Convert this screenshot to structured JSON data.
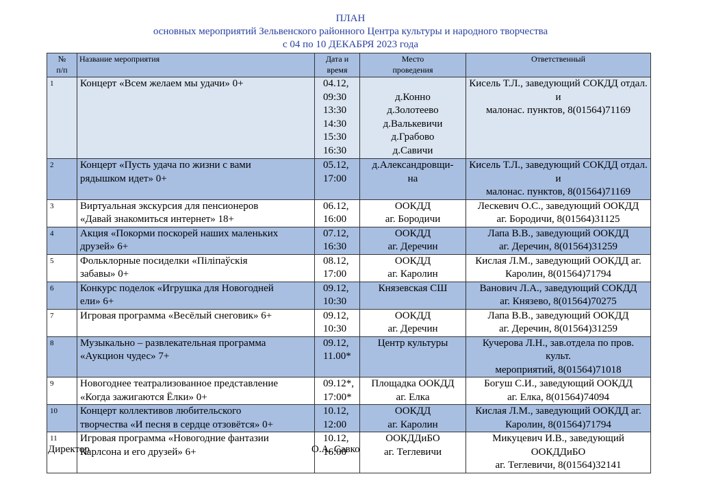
{
  "header": {
    "title": "ПЛАН",
    "subtitle": "основных мероприятий Зельвенского районного Центра культуры и народного творчества",
    "period": "с 04 по 10 ДЕКАБРЯ 2023 года"
  },
  "table": {
    "columns": [
      "№\nп/п",
      "Название мероприятия",
      "Дата и\nвремя",
      "Место\nпроведения",
      "Ответственный"
    ],
    "rows": [
      [
        "1",
        "Концерт «Всем желаем мы удачи» 0+",
        "04.12,\n09:30\n13:30\n14:30\n15:30\n16:30",
        "д.Конно\nд.Золотеево\nд.Валькевичи\nд.Грабово\nд.Савичи",
        "Кисель Т.Л., заведующий СОКДД отдал. и\nмалонас. пунктов, 8(01564)71169"
      ],
      [
        "2",
        "Концерт «Пусть удача по жизни с вами\nрядышком идет» 0+",
        "05.12,\n17:00",
        "д.Александровщи-\nна",
        "Кисель Т.Л., заведующий СОКДД отдал. и\nмалонас. пунктов, 8(01564)71169"
      ],
      [
        "3",
        "Виртуальная экскурсия для пенсионеров\n«Давай знакомиться интернет» 18+",
        "06.12,\n16:00",
        "ООКДД\nаг. Бородичи",
        "Лескевич О.С.,  заведующий ООКДД\nаг. Бородичи, 8(01564)31125"
      ],
      [
        "4",
        "Акция «Покорми поскорей наших маленьких\nдрузей» 6+",
        "07.12,\n16:30",
        "ООКДД\nаг. Деречин",
        "Лапа В.В., заведующий ООКДД\nаг. Деречин, 8(01564)31259"
      ],
      [
        "5",
        "Фольклорные посиделки «Піліпаўскія\nзабавы» 0+",
        "08.12,\n17:00",
        "ООКДД\nаг. Каролин",
        "Кислая Л.М., заведующий ООКДД аг.\nКаролин, 8(01564)71794"
      ],
      [
        "6",
        "Конкурс поделок «Игрушка для Новогодней\nели» 6+",
        "09.12,\n10:30",
        "Князевская СШ",
        "Ванович Л.А., заведующий СОКДД\nаг. Князево,   8(01564)70275"
      ],
      [
        "7",
        "Игровая программа «Весёлый снеговик» 6+",
        "09.12,\n10:30",
        "ООКДД\nаг. Деречин",
        "Лапа В.В., заведующий ООКДД\nаг. Деречин, 8(01564)31259"
      ],
      [
        "8",
        "Музыкально – развлекательная программа\n«Аукцион чудес» 7+",
        "09.12,\n11.00*",
        "Центр культуры",
        "Кучерова Л.Н., зав.отдела по пров. культ.\nмероприятий, 8(01564)71018"
      ],
      [
        "9",
        "Новогоднее театрализованное представление\n«Когда зажигаются Ёлки» 0+",
        "09.12*,\n17:00*",
        "Площадка ООКДД\nаг. Елка",
        "Богуш С.И., заведующий ООКДД\nаг. Елка, 8(01564)74094"
      ],
      [
        "10",
        "Концерт коллективов любительского\nтворчества  «И песня в сердце отзовётся» 0+",
        "10.12,\n12:00",
        "ООКДД\nаг. Каролин",
        "Кислая Л.М., заведующий ООКДД аг.\nКаролин, 8(01564)71794"
      ],
      [
        "11",
        "Игровая программа «Новогодние фантазии\nКарлсона и его друзей» 6+",
        "10.12,\n16:00",
        "ООКДДиБО\nаг. Теглевичи",
        "Микуцевич И.В., заведующий ООКДДиБО\nаг. Теглевичи, 8(01564)32141"
      ]
    ]
  },
  "footer": {
    "position": "Директор",
    "signature": "О.А. Савко"
  }
}
